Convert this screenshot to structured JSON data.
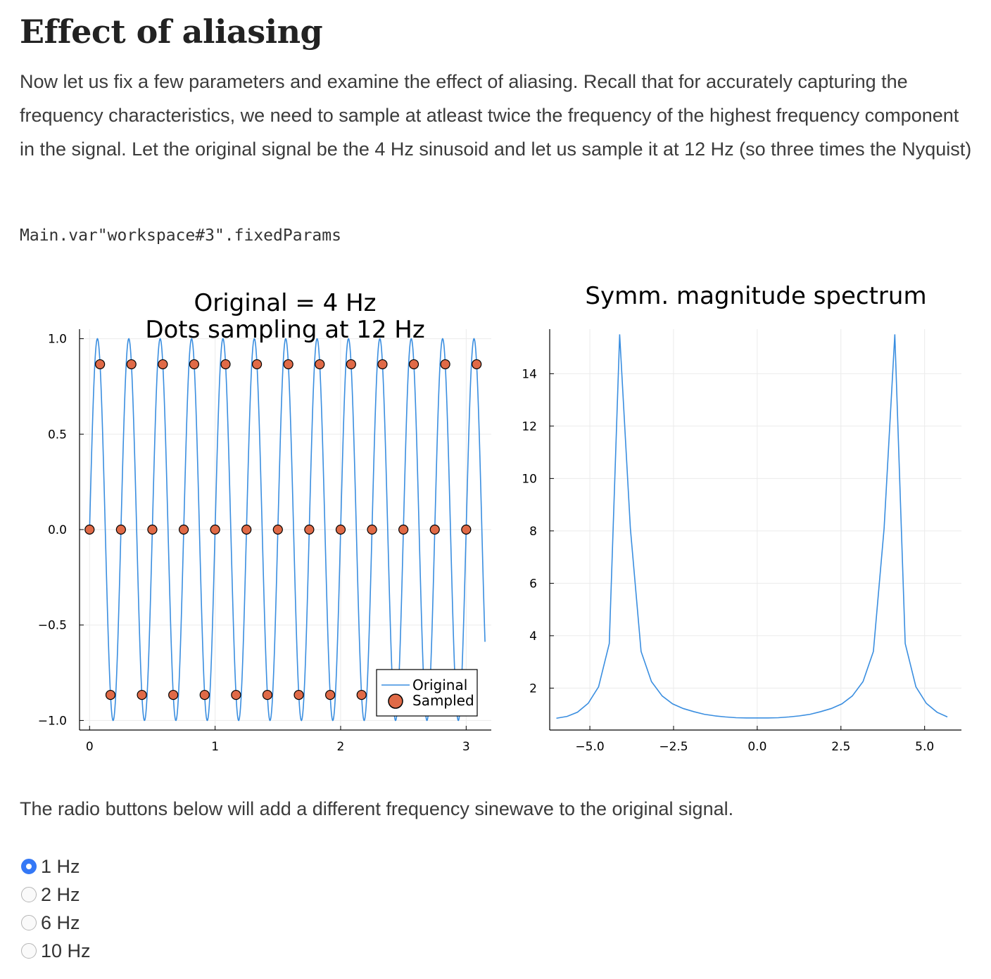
{
  "heading": "Effect of aliasing",
  "intro": "Now let us fix a few parameters and examine the effect of aliasing. Recall that for accurately capturing the frequency characteristics, we need to sample at atleast twice the frequency of the highest frequency component in the signal. Let the original signal be the 4 Hz sinusoid and let us sample it at 12 Hz (so three times the Nyquist)",
  "code_output": "Main.var\"workspace#3\".fixedParams",
  "radio_intro": "The radio buttons below will add a different frequency sinewave to the original signal.",
  "radios": [
    {
      "label": "1 Hz",
      "checked": true
    },
    {
      "label": "2 Hz",
      "checked": false
    },
    {
      "label": "6 Hz",
      "checked": false
    },
    {
      "label": "10 Hz",
      "checked": false
    }
  ],
  "colors": {
    "line": "#3a8ee0",
    "dots": "#e06a47",
    "grid": "#ebebeb"
  },
  "chart_data": [
    {
      "type": "line",
      "title_lines": [
        "Original = 4 Hz",
        "Dots sampling at 12 Hz"
      ],
      "xlim": [
        -0.08,
        3.2
      ],
      "ylim": [
        -1.05,
        1.05
      ],
      "xticks": [
        "0",
        "1",
        "2",
        "3"
      ],
      "xtick_values": [
        0,
        1,
        2,
        3
      ],
      "yticks": [
        "1.0",
        "0.5",
        "0.0",
        "−0.5",
        "−1.0"
      ],
      "ytick_values": [
        1.0,
        0.5,
        0.0,
        -0.5,
        -1.0
      ],
      "legend": [
        "Original",
        "Sampled"
      ],
      "legend_position": "bottom-right",
      "grid": true,
      "series": [
        {
          "name": "Original",
          "kind": "line",
          "frequency_hz": 4,
          "x_range": [
            0,
            3.15
          ]
        },
        {
          "name": "Sampled",
          "kind": "scatter",
          "sample_rate_hz": 12,
          "count": 38
        }
      ]
    },
    {
      "type": "line",
      "title": "Symm. magnitude spectrum",
      "xlim": [
        -6.2,
        6.1
      ],
      "ylim": [
        0.4,
        15.7
      ],
      "xticks": [
        "−5.0",
        "−2.5",
        "0.0",
        "2.5",
        "5.0"
      ],
      "xtick_values": [
        -5.0,
        -2.5,
        0.0,
        2.5,
        5.0
      ],
      "yticks": [
        "14",
        "12",
        "10",
        "8",
        "6",
        "4",
        "2"
      ],
      "ytick_values": [
        14,
        12,
        10,
        8,
        6,
        4,
        2
      ],
      "grid": true,
      "x": [
        -6.0,
        -5.68,
        -5.37,
        -5.05,
        -4.74,
        -4.42,
        -4.11,
        -3.79,
        -3.47,
        -3.16,
        -2.84,
        -2.53,
        -2.21,
        -1.89,
        -1.58,
        -1.26,
        -0.95,
        -0.63,
        -0.32,
        0.0,
        0.32,
        0.63,
        0.95,
        1.26,
        1.58,
        1.89,
        2.21,
        2.53,
        2.84,
        3.16,
        3.47,
        3.79,
        4.11,
        4.42,
        4.74,
        5.05,
        5.37,
        5.68
      ],
      "y": [
        0.85,
        0.92,
        1.08,
        1.42,
        2.05,
        3.7,
        15.5,
        8.1,
        3.4,
        2.25,
        1.7,
        1.4,
        1.22,
        1.1,
        1.0,
        0.94,
        0.9,
        0.87,
        0.86,
        0.86,
        0.86,
        0.87,
        0.9,
        0.94,
        1.0,
        1.1,
        1.22,
        1.4,
        1.7,
        2.25,
        3.4,
        8.1,
        15.5,
        3.7,
        2.05,
        1.42,
        1.08,
        0.9
      ]
    }
  ]
}
